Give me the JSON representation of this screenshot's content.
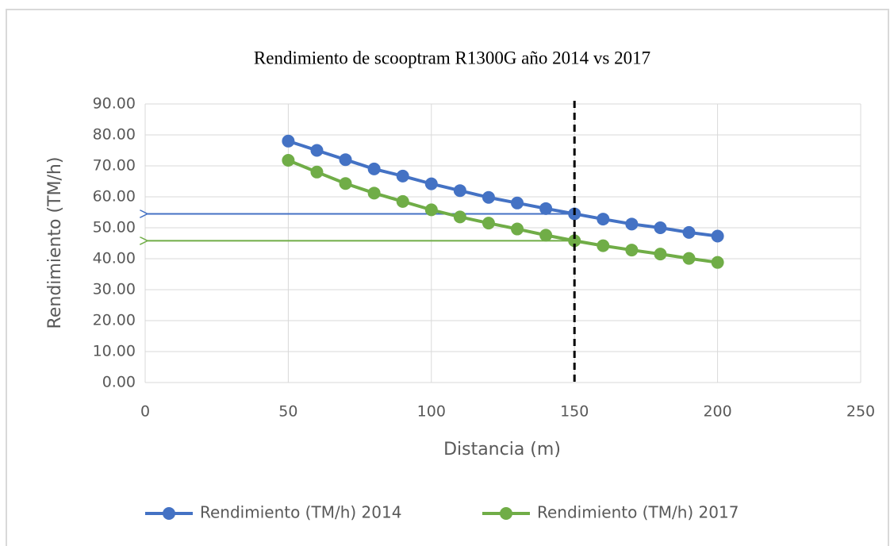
{
  "chart_data": {
    "type": "line",
    "title": "Rendimiento de scooptram R1300G año 2014 vs 2017",
    "x_label": "Distancia (m)",
    "y_label": "Rendimiento (TM/h)",
    "x": [
      50,
      60,
      70,
      80,
      90,
      100,
      110,
      120,
      130,
      140,
      150,
      160,
      170,
      180,
      190,
      200
    ],
    "series": [
      {
        "name": "Rendimiento (TM/h) 2014",
        "color": "#4472c4",
        "values": [
          78,
          75,
          72,
          69,
          66.7,
          64.2,
          62,
          59.8,
          58,
          56.2,
          54.5,
          52.8,
          51.2,
          50,
          48.5,
          47.3
        ]
      },
      {
        "name": "Rendimiento (TM/h) 2017",
        "color": "#70ad47",
        "values": [
          71.8,
          68,
          64.3,
          61.2,
          58.5,
          55.8,
          53.5,
          51.5,
          49.6,
          47.6,
          45.8,
          44.2,
          42.8,
          41.5,
          40.1,
          38.8
        ]
      }
    ],
    "xlim": [
      0,
      250
    ],
    "xticks": [
      0,
      50,
      100,
      150,
      200,
      250
    ],
    "ylim": [
      0,
      90
    ],
    "yticks": [
      {
        "value": 0,
        "label": "0.00"
      },
      {
        "value": 10,
        "label": "10.00"
      },
      {
        "value": 20,
        "label": "20.00"
      },
      {
        "value": 30,
        "label": "30.00"
      },
      {
        "value": 40,
        "label": "40.00"
      },
      {
        "value": 50,
        "label": "50.00"
      },
      {
        "value": 60,
        "label": "60.00"
      },
      {
        "value": 70,
        "label": "70.00"
      },
      {
        "value": 80,
        "label": "80.00"
      },
      {
        "value": 90,
        "label": "90.00"
      }
    ],
    "grid": true,
    "legend": "bottom",
    "annotations": {
      "vline": 150,
      "arrows": [
        {
          "y": 54.5,
          "color": "#4472c4"
        },
        {
          "y": 45.8,
          "color": "#70ad47"
        }
      ]
    }
  }
}
